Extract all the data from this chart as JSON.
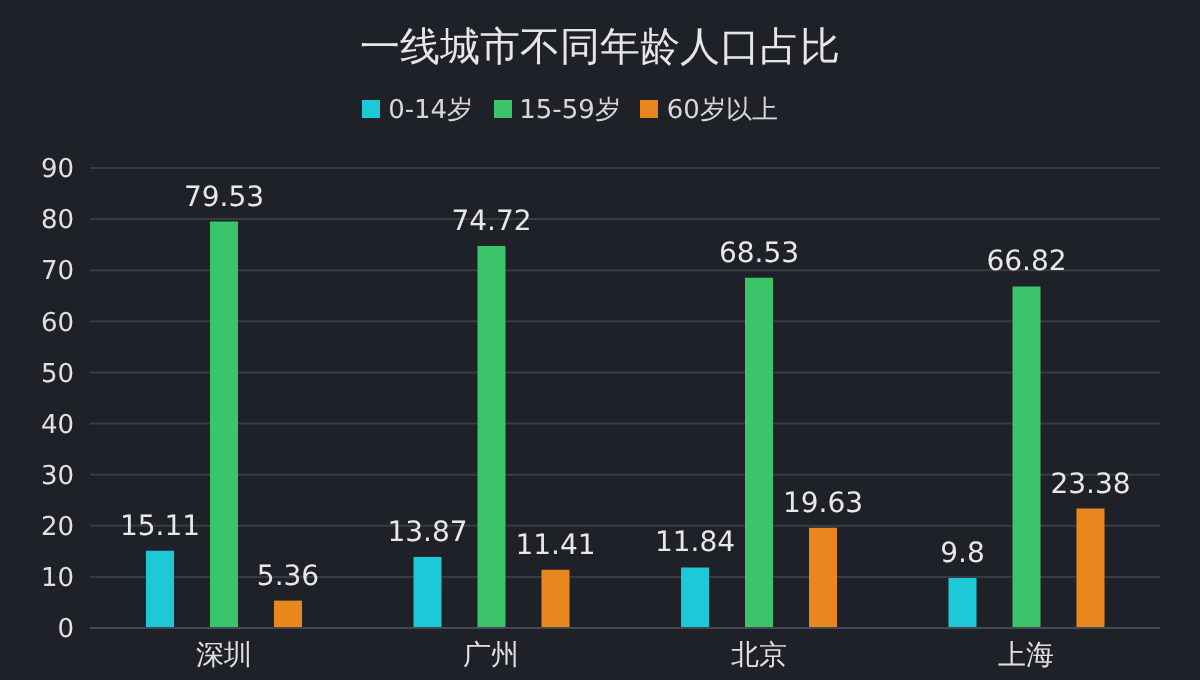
{
  "chart_data": {
    "type": "bar",
    "title": "一线城市不同年龄人口占比",
    "categories": [
      "深圳",
      "广州",
      "北京",
      "上海"
    ],
    "series": [
      {
        "name": "0-14岁",
        "color": "#1fc8d6",
        "values": [
          15.11,
          13.87,
          11.84,
          9.8
        ]
      },
      {
        "name": "15-59岁",
        "color": "#3cc46a",
        "values": [
          79.53,
          74.72,
          68.53,
          66.82
        ]
      },
      {
        "name": "60岁以上",
        "color": "#e8871e",
        "values": [
          5.36,
          11.41,
          19.63,
          23.38
        ]
      }
    ],
    "ylim": [
      0,
      90
    ],
    "yticks": [
      0,
      10,
      20,
      30,
      40,
      50,
      60,
      70,
      80,
      90
    ],
    "grid": "y",
    "legend": "top",
    "data_labels": true
  }
}
